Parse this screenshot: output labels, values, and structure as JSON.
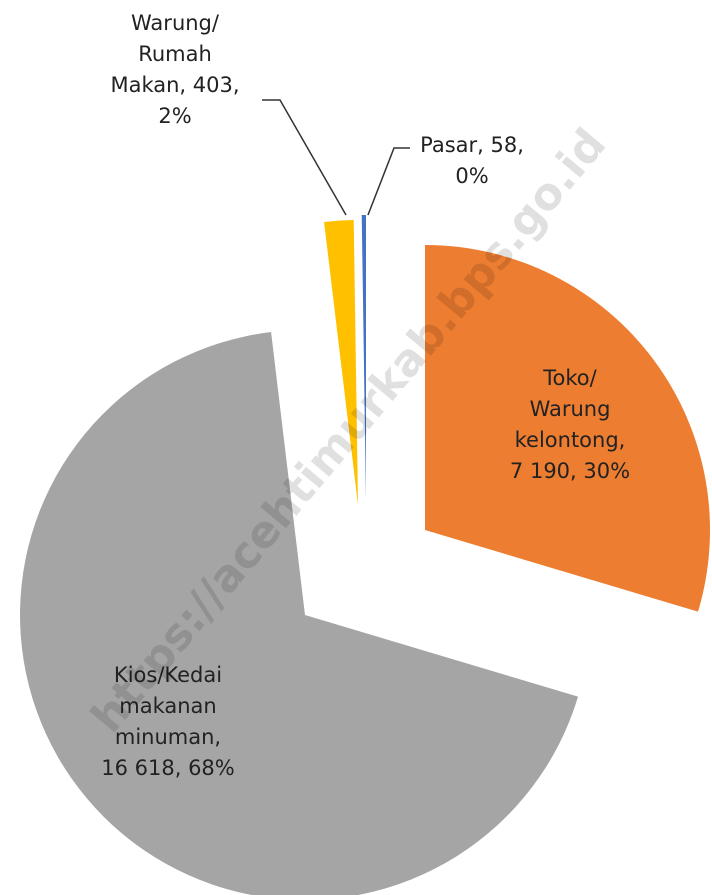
{
  "chart_data": {
    "type": "pie",
    "labels": [
      [
        "Toko/",
        "Warung",
        "kelontong,",
        "7 190, 30%"
      ],
      [
        "Kios/Kedai",
        "makanan",
        "minuman,",
        "16 618, 68%"
      ],
      [
        "Warung/",
        "Rumah",
        "Makan, 403,",
        "2%"
      ],
      [
        "Pasar, 58,",
        "0%"
      ]
    ],
    "values": [
      7190,
      16618,
      403,
      58
    ],
    "colors": [
      "#ed7d31",
      "#a5a5a5",
      "#ffc000",
      "#4472c4"
    ],
    "watermark": "https://acehtimurkab.bps.go.id"
  }
}
